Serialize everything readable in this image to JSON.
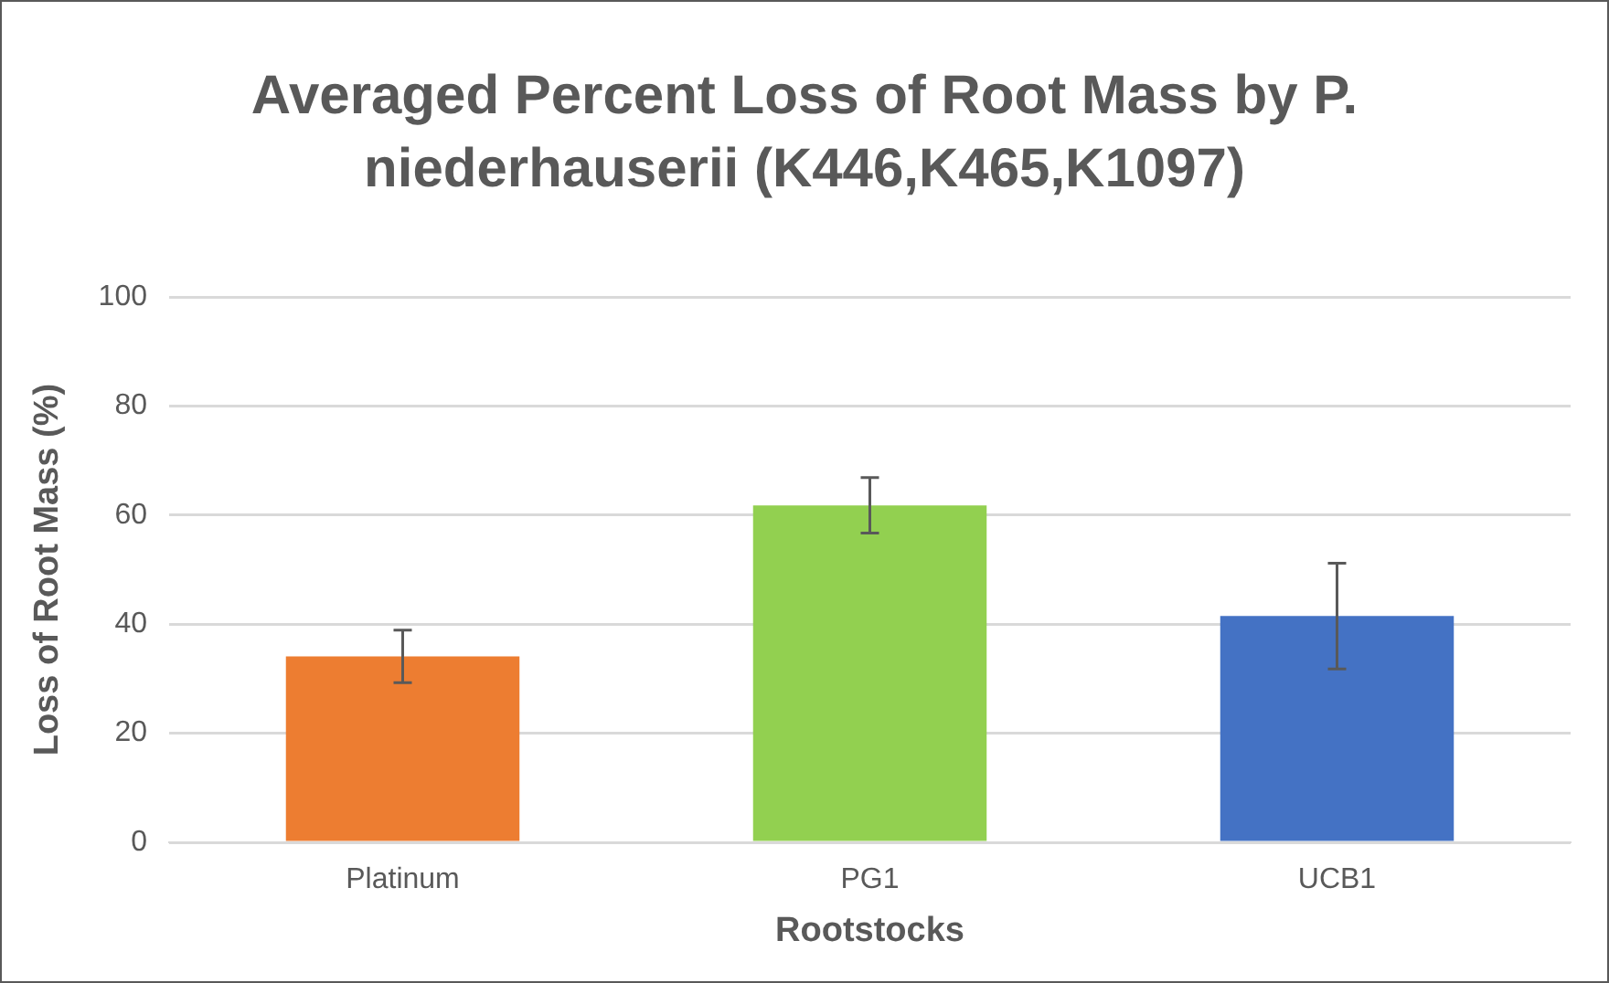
{
  "chart_data": {
    "type": "bar",
    "title": "Averaged Percent Loss of Root Mass by P. niederhauserii (K446,K465,K1097)",
    "xlabel": "Rootstocks",
    "ylabel": "Loss of Root Mass (%)",
    "categories": [
      "Platinum",
      "PG1",
      "UCB1"
    ],
    "values": [
      34.1,
      61.8,
      41.5
    ],
    "colors": [
      "#ed7d31",
      "#92d050",
      "#4472c4"
    ],
    "errors": [
      4.8,
      5.1,
      9.7
    ],
    "ylim": [
      0,
      100
    ],
    "yticks": [
      0,
      20,
      40,
      60,
      80,
      100
    ],
    "grid": "y",
    "legend": false
  }
}
